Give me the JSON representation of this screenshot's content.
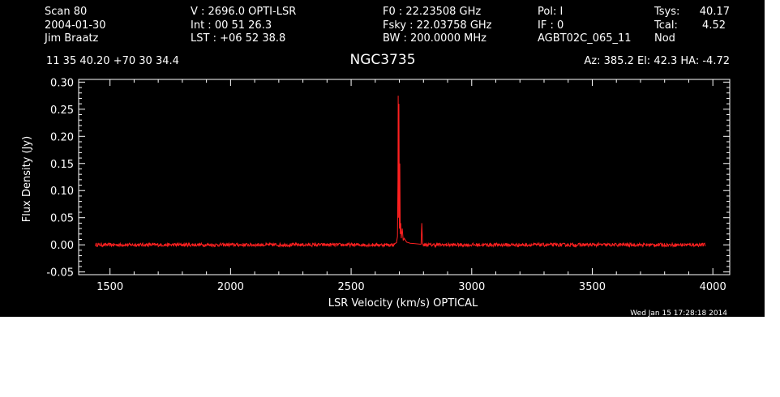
{
  "header": {
    "col1": [
      "Scan          80",
      "2004-01-30",
      "Jim Braatz"
    ],
    "col2": [
      "V   :     2696.0 OPTI-LSR",
      "Int  :  00 51 26.3",
      "LST : +06 52 38.8"
    ],
    "col3": [
      "F0   :  22.23508 GHz",
      "Fsky :  22.03758 GHz",
      "BW   : 200.0000 MHz"
    ],
    "col4": [
      "Pol:      I",
      "IF :      0",
      "AGBT02C_065_11"
    ],
    "col5_labels": [
      "Tsys:",
      "Tcal:",
      "Nod"
    ],
    "col5_values": [
      "40.17",
      "4.52"
    ],
    "coords": "11 35 40.20  +70 30 34.4",
    "source": "NGC3735",
    "azel": "Az: 385.2  El:  42.3  HA: -4.72",
    "timestamp": "Wed Jan 15 17:28:18 2014"
  },
  "colors": {
    "background": "#000000",
    "foreground": "#ffffff",
    "series": "#ff2020"
  },
  "chart_data": {
    "type": "line",
    "title": "NGC3735",
    "xlabel": "LSR Velocity (km/s) OPTICAL",
    "ylabel": "Flux Density (Jy)",
    "xlim": [
      1370,
      4070
    ],
    "ylim": [
      -0.055,
      0.305
    ],
    "xticks": [
      1500,
      2000,
      2500,
      3000,
      3500,
      4000
    ],
    "xtick_labels": [
      "1500",
      "2000",
      "2500",
      "3000",
      "3500",
      "4000"
    ],
    "yticks": [
      -0.05,
      0.0,
      0.05,
      0.1,
      0.15,
      0.2,
      0.25,
      0.3
    ],
    "ytick_labels": [
      "-0.05",
      "0.00",
      "0.05",
      "0.10",
      "0.15",
      "0.20",
      "0.25",
      "0.30"
    ],
    "grid": false,
    "series": [
      {
        "x_range": [
          1440,
          3970
        ],
        "noise_rms": 0.002,
        "points": [
          [
            2680,
            0.002
          ],
          [
            2688,
            0.004
          ],
          [
            2692,
            0.015
          ],
          [
            2694,
            0.12
          ],
          [
            2695,
            0.275
          ],
          [
            2696,
            0.05
          ],
          [
            2698,
            0.26
          ],
          [
            2700,
            0.03
          ],
          [
            2702,
            0.15
          ],
          [
            2704,
            0.02
          ],
          [
            2706,
            0.04
          ],
          [
            2708,
            0.012
          ],
          [
            2712,
            0.03
          ],
          [
            2716,
            0.008
          ],
          [
            2720,
            0.012
          ],
          [
            2730,
            0.005
          ],
          [
            2745,
            0.003
          ],
          [
            2790,
            0.001
          ],
          [
            2793,
            0.04
          ],
          [
            2796,
            0.002
          ]
        ]
      }
    ]
  }
}
